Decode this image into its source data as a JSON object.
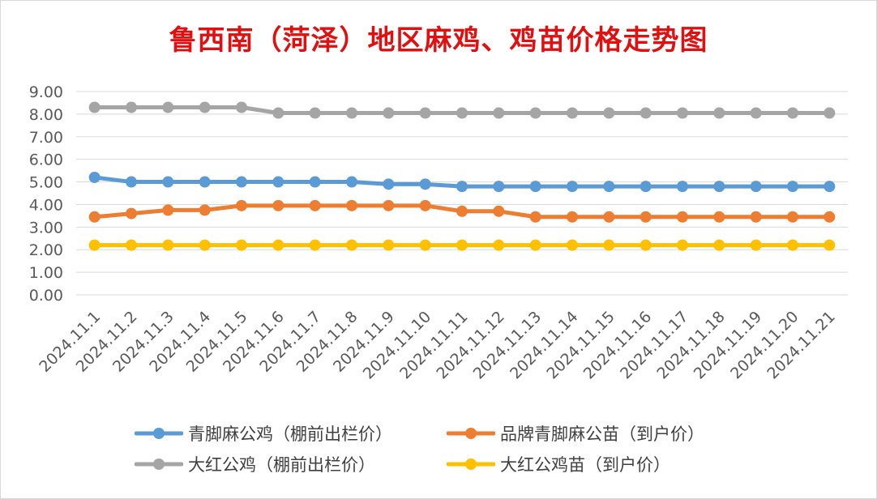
{
  "title": "鲁西南（菏泽）地区麻鸡、鸡苗价格走势图",
  "colors": {
    "title": "#e01010",
    "grid": "#d9d9d9",
    "axis_text": "#595959"
  },
  "chart_data": {
    "type": "line",
    "title": "鲁西南（菏泽）地区麻鸡、鸡苗价格走势图",
    "categories": [
      "2024.11.1",
      "2024.11.2",
      "2024.11.3",
      "2024.11.4",
      "2024.11.5",
      "2024.11.6",
      "2024.11.7",
      "2024.11.8",
      "2024.11.9",
      "2024.11.10",
      "2024.11.11",
      "2024.11.12",
      "2024.11.13",
      "2024.11.14",
      "2024.11.15",
      "2024.11.16",
      "2024.11.17",
      "2024.11.18",
      "2024.11.19",
      "2024.11.20",
      "2024.11.21"
    ],
    "y_ticks": [
      "0.00",
      "1.00",
      "2.00",
      "3.00",
      "4.00",
      "5.00",
      "6.00",
      "7.00",
      "8.00",
      "9.00"
    ],
    "ylim": [
      0,
      9
    ],
    "grid": true,
    "legend_position": "bottom",
    "series": [
      {
        "name": "青脚麻公鸡（棚前出栏价）",
        "color": "#5b9bd5",
        "values": [
          5.2,
          5.0,
          5.0,
          5.0,
          5.0,
          5.0,
          5.0,
          5.0,
          4.9,
          4.9,
          4.8,
          4.8,
          4.8,
          4.8,
          4.8,
          4.8,
          4.8,
          4.8,
          4.8,
          4.8,
          4.8
        ]
      },
      {
        "name": "品牌青脚麻公苗（到户价）",
        "color": "#ed7d31",
        "values": [
          3.45,
          3.6,
          3.75,
          3.75,
          3.95,
          3.95,
          3.95,
          3.95,
          3.95,
          3.95,
          3.7,
          3.7,
          3.45,
          3.45,
          3.45,
          3.45,
          3.45,
          3.45,
          3.45,
          3.45,
          3.45
        ]
      },
      {
        "name": "大红公鸡（棚前出栏价）",
        "color": "#a5a5a5",
        "values": [
          8.3,
          8.3,
          8.3,
          8.3,
          8.3,
          8.05,
          8.05,
          8.05,
          8.05,
          8.05,
          8.05,
          8.05,
          8.05,
          8.05,
          8.05,
          8.05,
          8.05,
          8.05,
          8.05,
          8.05,
          8.05
        ]
      },
      {
        "name": "大红公鸡苗（到户价）",
        "color": "#ffc000",
        "values": [
          2.2,
          2.2,
          2.2,
          2.2,
          2.2,
          2.2,
          2.2,
          2.2,
          2.2,
          2.2,
          2.2,
          2.2,
          2.2,
          2.2,
          2.2,
          2.2,
          2.2,
          2.2,
          2.2,
          2.2,
          2.2
        ]
      }
    ]
  }
}
